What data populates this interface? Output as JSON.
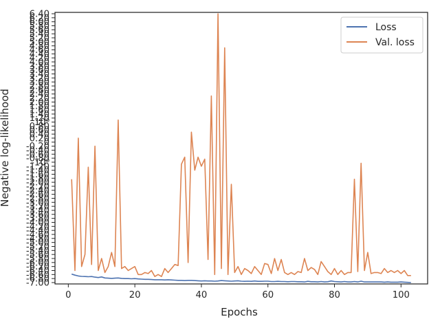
{
  "chart_data": {
    "type": "line",
    "title": "",
    "xlabel": "Epochs",
    "ylabel": "Negative log-likelihood",
    "xlim": [
      -4,
      108
    ],
    "xticks": [
      0,
      20,
      40,
      60,
      80,
      100
    ],
    "grid": false,
    "legend_position": "top-right",
    "ytick_labels": [
      "-7.00",
      "-6.80",
      "-6.60",
      "-6.40",
      "-6.20",
      "-6.00",
      "-5.80",
      "-5.60",
      "-5.40",
      "-5.20",
      "-5.00",
      "-4.80",
      "-4.60",
      "-4.40",
      "-4.20",
      "-4.00",
      "-3.80",
      "-3.60",
      "-3.40",
      "-3.20",
      "-3.00",
      "-2.80",
      "-2.60",
      "-2.40",
      "-2.20",
      "-2.00",
      "-1.80",
      "-1.60",
      "-1.40",
      "-1.20",
      "-10⁰",
      "-0.80",
      "-0.60",
      "-0.40",
      "-0.20",
      "0",
      "0.20",
      "0.40",
      "0.60",
      "0.80",
      "10⁰",
      "1.20",
      "1.40",
      "1.60",
      "1.80",
      "2.00",
      "2.20",
      "2.40",
      "2.60",
      "2.80",
      "3.00",
      "3.20",
      "3.40",
      "3.60",
      "3.80",
      "4.00",
      "4.20",
      "4.40",
      "4.60",
      "4.80",
      "5.00",
      "5.20",
      "5.40",
      "5.60",
      "5.80",
      "6.00",
      "6.20",
      "6.40"
    ],
    "x": [
      1,
      2,
      3,
      4,
      5,
      6,
      7,
      8,
      9,
      10,
      11,
      12,
      13,
      14,
      15,
      16,
      17,
      18,
      19,
      20,
      21,
      22,
      23,
      24,
      25,
      26,
      27,
      28,
      29,
      30,
      31,
      32,
      33,
      34,
      35,
      36,
      37,
      38,
      39,
      40,
      41,
      42,
      43,
      44,
      45,
      46,
      47,
      48,
      49,
      50,
      51,
      52,
      53,
      54,
      55,
      56,
      57,
      58,
      59,
      60,
      61,
      62,
      63,
      64,
      65,
      66,
      67,
      68,
      69,
      70,
      71,
      72,
      73,
      74,
      75,
      76,
      77,
      78,
      79,
      80,
      81,
      82,
      83,
      84,
      85,
      86,
      87,
      88,
      89,
      90,
      91,
      92,
      93,
      94,
      95,
      96,
      97,
      98,
      99,
      100,
      101,
      102,
      103
    ],
    "series": [
      {
        "name": "Loss",
        "color": "#4c72b0",
        "values": [
          -6.58,
          -6.63,
          -6.67,
          -6.69,
          -6.7,
          -6.71,
          -6.7,
          -6.73,
          -6.75,
          -6.72,
          -6.77,
          -6.78,
          -6.79,
          -6.78,
          -6.77,
          -6.79,
          -6.8,
          -6.8,
          -6.81,
          -6.8,
          -6.82,
          -6.83,
          -6.84,
          -6.84,
          -6.85,
          -6.86,
          -6.86,
          -6.86,
          -6.87,
          -6.86,
          -6.87,
          -6.88,
          -6.89,
          -6.89,
          -6.9,
          -6.89,
          -6.89,
          -6.9,
          -6.91,
          -6.92,
          -6.91,
          -6.92,
          -6.92,
          -6.93,
          -6.92,
          -6.9,
          -6.91,
          -6.92,
          -6.93,
          -6.92,
          -6.91,
          -6.93,
          -6.94,
          -6.93,
          -6.94,
          -6.92,
          -6.94,
          -6.94,
          -6.93,
          -6.93,
          -6.95,
          -6.95,
          -6.94,
          -6.95,
          -6.95,
          -6.96,
          -6.95,
          -6.95,
          -6.96,
          -6.96,
          -6.97,
          -6.94,
          -6.96,
          -6.96,
          -6.97,
          -6.95,
          -6.97,
          -6.96,
          -6.92,
          -6.95,
          -6.96,
          -6.97,
          -6.95,
          -6.97,
          -6.97,
          -6.95,
          -6.97,
          -6.93,
          -6.97,
          -6.97,
          -6.97,
          -6.97,
          -6.97,
          -6.97,
          -6.98,
          -6.97,
          -6.98,
          -6.98,
          -6.98,
          -6.97,
          -6.98,
          -6.99,
          -7.0
        ]
      },
      {
        "name": "Val. loss",
        "color": "#dd8452",
        "values": [
          -1.85,
          -6.4,
          0.2,
          -6.2,
          -5.6,
          -1.25,
          -6.1,
          -0.2,
          -6.4,
          -5.8,
          -6.5,
          -6.2,
          -5.5,
          -6.2,
          1.1,
          -6.3,
          -6.2,
          -6.4,
          -6.3,
          -6.2,
          -6.6,
          -6.6,
          -6.5,
          -6.55,
          -6.4,
          -6.7,
          -6.6,
          -6.7,
          -6.3,
          -6.5,
          -6.3,
          -6.1,
          -6.15,
          -1.1,
          -0.75,
          -6.0,
          0.5,
          -1.4,
          -0.75,
          -1.2,
          -0.85,
          -5.85,
          2.3,
          -6.6,
          6.4,
          -6.3,
          4.7,
          -6.6,
          -2.1,
          -6.5,
          -6.2,
          -6.6,
          -6.3,
          -6.4,
          -6.55,
          -6.2,
          -6.4,
          -6.6,
          -6.05,
          -6.1,
          -6.55,
          -5.8,
          -6.4,
          -5.85,
          -6.5,
          -6.6,
          -6.5,
          -6.6,
          -6.45,
          -6.5,
          -5.8,
          -6.4,
          -6.25,
          -6.35,
          -6.6,
          -5.95,
          -6.2,
          -6.45,
          -6.6,
          -6.3,
          -6.6,
          -6.4,
          -6.6,
          -6.5,
          -6.5,
          -1.85,
          -6.45,
          -1.05,
          -6.4,
          -5.5,
          -6.55,
          -6.5,
          -6.5,
          -6.55,
          -6.3,
          -6.5,
          -6.4,
          -6.5,
          -6.4,
          -6.55,
          -6.4,
          -6.65,
          -6.65
        ]
      }
    ]
  }
}
